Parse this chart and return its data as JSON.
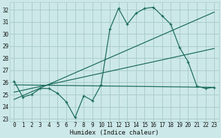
{
  "xlabel": "Humidex (Indice chaleur)",
  "background_color": "#cce8e8",
  "grid_color": "#aacccc",
  "line_color": "#1a6b5a",
  "xlim": [
    -0.5,
    23.5
  ],
  "ylim": [
    22.8,
    32.6
  ],
  "yticks": [
    23,
    24,
    25,
    26,
    27,
    28,
    29,
    30,
    31,
    32
  ],
  "xticks": [
    0,
    1,
    2,
    3,
    4,
    5,
    6,
    7,
    8,
    9,
    10,
    11,
    12,
    13,
    14,
    15,
    16,
    17,
    18,
    19,
    20,
    21,
    22,
    23
  ],
  "series1_x": [
    0,
    1,
    2,
    3,
    4,
    5,
    6,
    7,
    8,
    9,
    10,
    11,
    12,
    13,
    14,
    15,
    16,
    17,
    18,
    19,
    20,
    21,
    22,
    23
  ],
  "series1_y": [
    26.1,
    24.8,
    25.0,
    25.5,
    25.5,
    25.1,
    24.4,
    23.1,
    24.9,
    24.5,
    25.8,
    30.4,
    32.1,
    30.8,
    31.7,
    32.1,
    32.2,
    31.5,
    30.8,
    28.9,
    27.7,
    25.7,
    25.5,
    25.6
  ],
  "trend1_x": [
    0,
    23
  ],
  "trend1_y": [
    25.8,
    25.6
  ],
  "trend2_x": [
    0,
    23
  ],
  "trend2_y": [
    25.2,
    28.8
  ],
  "trend3_x": [
    0,
    23
  ],
  "trend3_y": [
    24.6,
    31.8
  ]
}
